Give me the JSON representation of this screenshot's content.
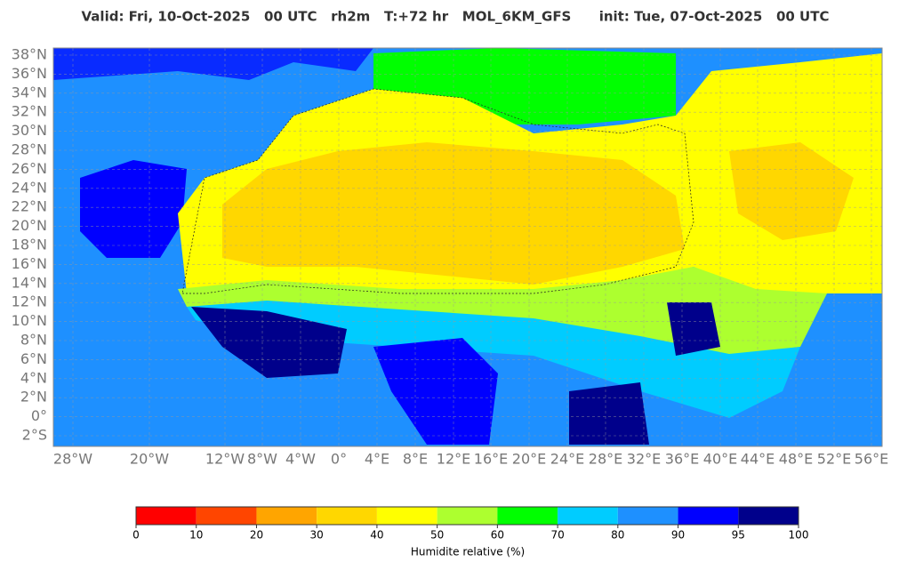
{
  "header": {
    "title": "Valid: Fri, 10-Oct-2025   00 UTC   rh2m   T:+72 hr   MOL_6KM_GFS      init: Tue, 07-Oct-2025   00 UTC"
  },
  "map": {
    "lat_labels": [
      "38°N",
      "36°N",
      "34°N",
      "32°N",
      "30°N",
      "28°N",
      "26°N",
      "24°N",
      "22°N",
      "20°N",
      "18°N",
      "16°N",
      "14°N",
      "12°N",
      "10°N",
      "8°N",
      "6°N",
      "4°N",
      "2°N",
      "0°",
      "2°S"
    ],
    "lon_labels": [
      "28°W",
      "20°W",
      "12°W",
      "8°W",
      "4°W",
      "0°",
      "4°E",
      "8°E",
      "12°E",
      "16°E",
      "20°E",
      "24°E",
      "28°E",
      "32°E",
      "36°E",
      "40°E",
      "44°E",
      "48°E",
      "52°E",
      "56°E"
    ]
  },
  "colorbar": {
    "colors": [
      "#ff0000",
      "#ff4500",
      "#ffa500",
      "#ffd700",
      "#ffff00",
      "#adff2f",
      "#00ff00",
      "#00ccff",
      "#1e90ff",
      "#0000ff",
      "#00008b"
    ],
    "ticks": [
      0,
      10,
      20,
      30,
      40,
      50,
      60,
      70,
      80,
      90,
      95,
      100
    ],
    "label": "Humidite relative (%)"
  }
}
